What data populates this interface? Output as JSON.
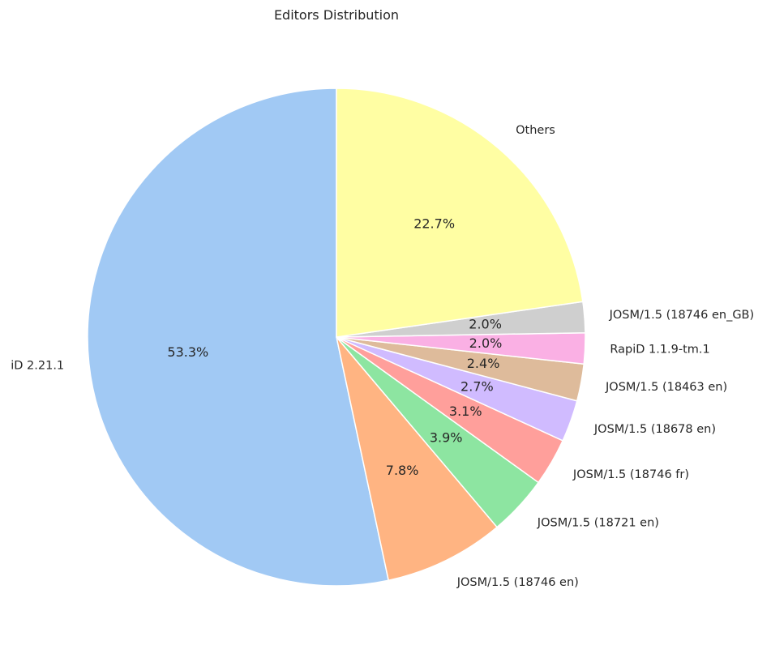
{
  "chart_data": {
    "type": "pie",
    "title": "Editors Distribution",
    "start_angle_deg": 90,
    "direction": "counterclockwise",
    "slices": [
      {
        "label": "iD 2.21.1",
        "value": 53.3,
        "pct_label": "53.3%",
        "color": "#a1c9f4"
      },
      {
        "label": "JOSM/1.5 (18746 en)",
        "value": 7.8,
        "pct_label": "7.8%",
        "color": "#ffb482"
      },
      {
        "label": "JOSM/1.5 (18721 en)",
        "value": 3.9,
        "pct_label": "3.9%",
        "color": "#8de5a1"
      },
      {
        "label": "JOSM/1.5 (18746 fr)",
        "value": 3.1,
        "pct_label": "3.1%",
        "color": "#ff9f9b"
      },
      {
        "label": "JOSM/1.5 (18678 en)",
        "value": 2.7,
        "pct_label": "2.7%",
        "color": "#d0bbff"
      },
      {
        "label": "JOSM/1.5 (18463 en)",
        "value": 2.4,
        "pct_label": "2.4%",
        "color": "#debb9b"
      },
      {
        "label": "RapiD 1.1.9-tm.1",
        "value": 2.0,
        "pct_label": "2.0%",
        "color": "#fab0e4"
      },
      {
        "label": "JOSM/1.5 (18746 en_GB)",
        "value": 2.0,
        "pct_label": "2.0%",
        "color": "#cfcfcf"
      },
      {
        "label": "Others",
        "value": 22.7,
        "pct_label": "22.7%",
        "color": "#fffea3"
      }
    ]
  }
}
